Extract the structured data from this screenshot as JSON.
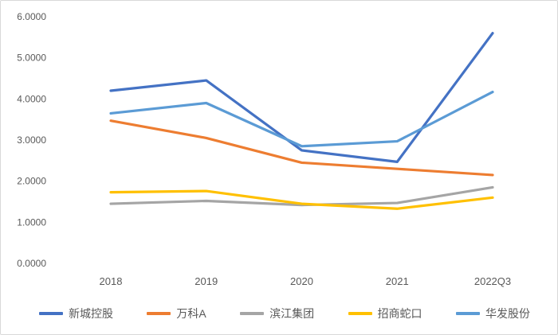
{
  "chart_data": {
    "type": "line",
    "title": "",
    "xlabel": "",
    "ylabel": "",
    "categories": [
      "2018",
      "2019",
      "2020",
      "2021",
      "2022Q3"
    ],
    "series": [
      {
        "name": "新城控股",
        "color": "#4472C4",
        "values": [
          4.2,
          4.45,
          2.75,
          2.47,
          5.6
        ]
      },
      {
        "name": "万科A",
        "color": "#ED7D31",
        "values": [
          3.47,
          3.05,
          2.45,
          2.3,
          2.15
        ]
      },
      {
        "name": "滨江集团",
        "color": "#A5A5A5",
        "values": [
          1.45,
          1.52,
          1.42,
          1.47,
          1.85
        ]
      },
      {
        "name": "招商蛇口",
        "color": "#FFC000",
        "values": [
          1.73,
          1.76,
          1.45,
          1.33,
          1.6
        ]
      },
      {
        "name": "华发股份",
        "color": "#5B9BD5",
        "values": [
          3.65,
          3.9,
          2.85,
          2.97,
          4.17
        ]
      }
    ],
    "ylim": [
      0,
      6
    ],
    "y_ticks": [
      "0.0000",
      "1.0000",
      "2.0000",
      "3.0000",
      "4.0000",
      "5.0000",
      "6.0000"
    ],
    "grid": false,
    "legend_position": "bottom"
  }
}
